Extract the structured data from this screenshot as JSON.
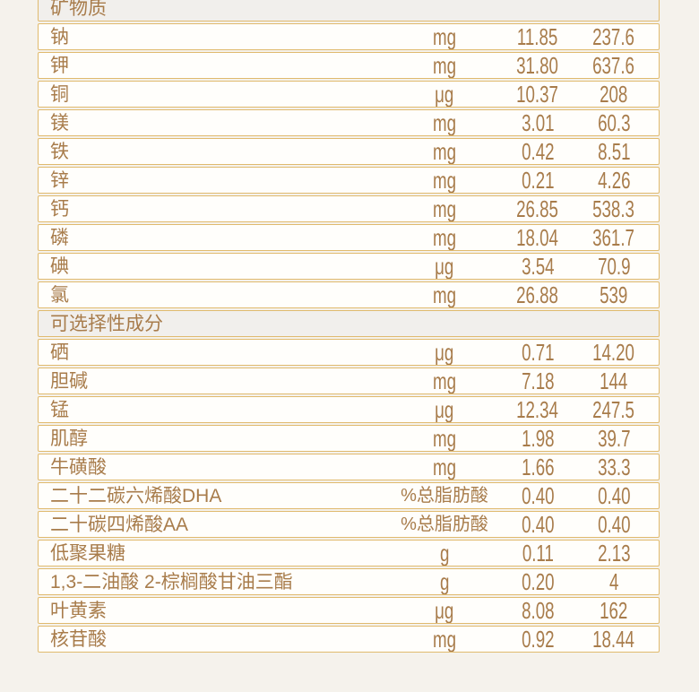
{
  "accent_colors": {
    "border_gold": "#e0ba6e",
    "text_brown": "#a87c4b",
    "row_background": "#fffefb",
    "section_header_background": "#f1efec",
    "page_background": "#f5f2ec"
  },
  "chart_data": {
    "type": "table",
    "sections": [
      {
        "header": "矿物质",
        "rows": [
          {
            "name": "钠",
            "unit": "mg",
            "values": [
              "11.85",
              "237.6"
            ]
          },
          {
            "name": "钾",
            "unit": "mg",
            "values": [
              "31.80",
              "637.6"
            ]
          },
          {
            "name": "铜",
            "unit": "μg",
            "values": [
              "10.37",
              "208"
            ]
          },
          {
            "name": "镁",
            "unit": "mg",
            "values": [
              "3.01",
              "60.3"
            ]
          },
          {
            "name": "铁",
            "unit": "mg",
            "values": [
              "0.42",
              "8.51"
            ]
          },
          {
            "name": "锌",
            "unit": "mg",
            "values": [
              "0.21",
              "4.26"
            ]
          },
          {
            "name": "钙",
            "unit": "mg",
            "values": [
              "26.85",
              "538.3"
            ]
          },
          {
            "name": "磷",
            "unit": "mg",
            "values": [
              "18.04",
              "361.7"
            ]
          },
          {
            "name": "碘",
            "unit": "μg",
            "values": [
              "3.54",
              "70.9"
            ]
          },
          {
            "name": "氯",
            "unit": "mg",
            "values": [
              "26.88",
              "539"
            ]
          }
        ]
      },
      {
        "header": "可选择性成分",
        "rows": [
          {
            "name": "硒",
            "unit": "μg",
            "values": [
              "0.71",
              "14.20"
            ]
          },
          {
            "name": "胆碱",
            "unit": "mg",
            "values": [
              "7.18",
              "144"
            ]
          },
          {
            "name": "锰",
            "unit": "μg",
            "values": [
              "12.34",
              "247.5"
            ]
          },
          {
            "name": "肌醇",
            "unit": "mg",
            "values": [
              "1.98",
              "39.7"
            ]
          },
          {
            "name": "牛磺酸",
            "unit": "mg",
            "values": [
              "1.66",
              "33.3"
            ]
          },
          {
            "name": "二十二碳六烯酸DHA",
            "unit": "%总脂肪酸",
            "values": [
              "0.40",
              "0.40"
            ]
          },
          {
            "name": "二十碳四烯酸AA",
            "unit": "%总脂肪酸",
            "values": [
              "0.40",
              "0.40"
            ]
          },
          {
            "name": "低聚果糖",
            "unit": "g",
            "values": [
              "0.11",
              "2.13"
            ]
          },
          {
            "name": "1,3-二油酸 2-棕榈酸甘油三酯",
            "unit": "g",
            "values": [
              "0.20",
              "4"
            ]
          },
          {
            "name": "叶黄素",
            "unit": "μg",
            "values": [
              "8.08",
              "162"
            ]
          },
          {
            "name": "核苷酸",
            "unit": "mg",
            "values": [
              "0.92",
              "18.44"
            ]
          }
        ]
      }
    ]
  }
}
